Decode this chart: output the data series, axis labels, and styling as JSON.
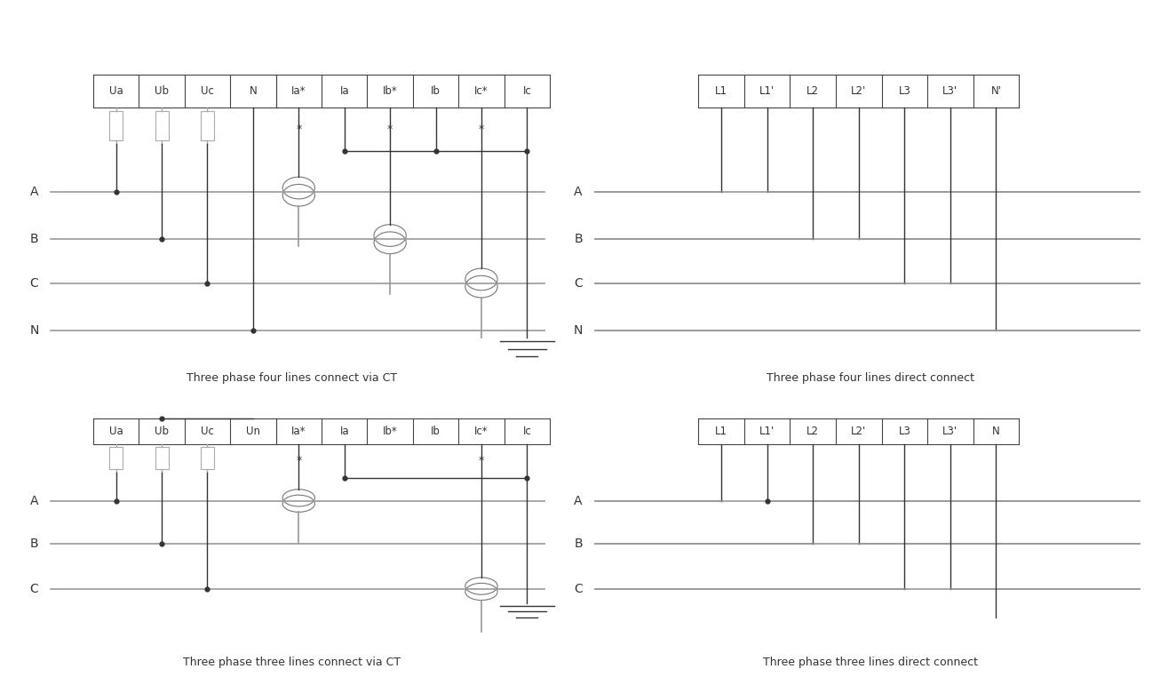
{
  "bg_color": "#ffffff",
  "line_color": "#999999",
  "dark_color": "#333333",
  "box_color": "#444444",
  "title1": "Three phase four lines connect via CT",
  "title2": "Three phase four lines direct connect",
  "title3": "Three phase three lines connect via CT",
  "title4": "Three phase three lines direct connect",
  "labels_voltage_4": [
    "Ua",
    "Ub",
    "Uc",
    "N"
  ],
  "labels_current": [
    "Ia*",
    "Ia",
    "Ib*",
    "Ib",
    "Ic*",
    "Ic"
  ],
  "labels_direct_4": [
    "L1",
    "L1'",
    "L2",
    "L2'",
    "L3",
    "L3'",
    "N'"
  ],
  "labels_voltage_3": [
    "Ua",
    "Ub",
    "Uc",
    "Un"
  ],
  "labels_current_3": [
    "Ia*",
    "Ia",
    "Ib*",
    "Ib",
    "Ic*",
    "Ic"
  ],
  "labels_direct_3": [
    "L1",
    "L1'",
    "L2",
    "L2'",
    "L3",
    "L3'",
    "N"
  ],
  "phase_labels_4": [
    "A",
    "B",
    "C",
    "N"
  ],
  "phase_labels_3": [
    "A",
    "B",
    "C"
  ]
}
